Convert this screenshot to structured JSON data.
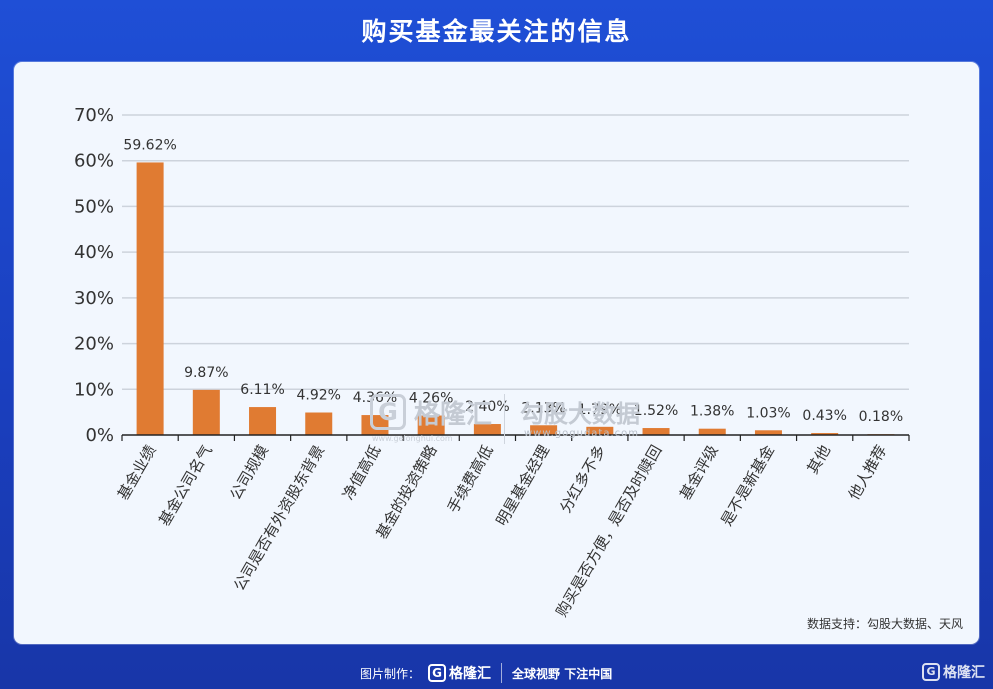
{
  "title": "购买基金最关注的信息",
  "watermark": {
    "logo_glyph": "G",
    "name": "格隆汇",
    "sub_url": "www.gelonghui.com",
    "partner_name": "勾股大数据",
    "partner_url": "www.gogudata.com"
  },
  "source": "数据支持：勾股大数据、天风",
  "footer": {
    "label": "图片制作：",
    "logo_glyph": "G",
    "brand": "格隆汇",
    "slogan": "全球视野 下注中国"
  },
  "corner": {
    "logo_glyph": "G",
    "brand": "格隆汇"
  },
  "colors": {
    "bar": "#e07b32",
    "grid": "#cdd3dc",
    "axis": "#222222",
    "text": "#333333"
  },
  "chart_data": {
    "type": "bar",
    "title": "购买基金最关注的信息",
    "categories": [
      "基金业绩",
      "基金公司名气",
      "公司规模",
      "公司是否有外资股东背景",
      "净值高低",
      "基金的投资策略",
      "手续费高低",
      "明星基金经理",
      "分红多不多",
      "购买是否方便，是否及时赎回",
      "基金评级",
      "是不是新基金",
      "其他",
      "他人推荐"
    ],
    "values": [
      59.62,
      9.87,
      6.11,
      4.92,
      4.36,
      4.26,
      2.4,
      2.13,
      1.79,
      1.52,
      1.38,
      1.03,
      0.43,
      0.18
    ],
    "value_labels": [
      "59.62%",
      "9.87%",
      "6.11%",
      "4.92%",
      "4.36%",
      "4.26%",
      "2.40%",
      "2.13%",
      "1.79%",
      "1.52%",
      "1.38%",
      "1.03%",
      "0.43%",
      "0.18%"
    ],
    "ylim": [
      0,
      70
    ],
    "yticks": [
      "0%",
      "10%",
      "20%",
      "30%",
      "40%",
      "50%",
      "60%",
      "70%"
    ],
    "xlabel": "",
    "ylabel": "",
    "grid": true
  }
}
